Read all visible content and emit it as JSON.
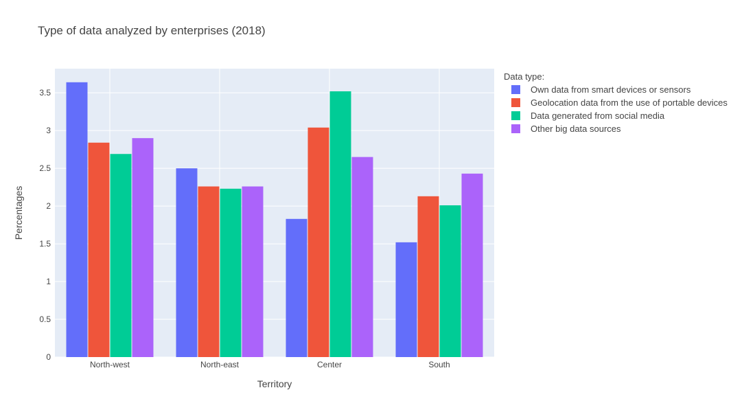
{
  "chart_data": {
    "type": "bar",
    "title": "Type of data analyzed by enterprises (2018)",
    "xlabel": "Territory",
    "ylabel": "Percentages",
    "categories": [
      "North-west",
      "North-east",
      "Center",
      "South"
    ],
    "ylim": [
      0,
      3.82
    ],
    "yticks": [
      0,
      0.5,
      1,
      1.5,
      2,
      2.5,
      3,
      3.5
    ],
    "ytick_labels": [
      "0",
      "0.5",
      "1",
      "1.5",
      "2",
      "2.5",
      "3",
      "3.5"
    ],
    "grid": true,
    "legend_title": "Data type:",
    "legend_position": "top-right, outside plot",
    "series": [
      {
        "name": "Own data from smart devices or sensors",
        "color": "#636efa",
        "values": [
          3.64,
          2.5,
          1.83,
          1.52
        ]
      },
      {
        "name": "Geolocation data from the use of portable devices",
        "color": "#ef553b",
        "values": [
          2.84,
          2.26,
          3.04,
          2.13
        ]
      },
      {
        "name": "Data generated from social media",
        "color": "#00cc96",
        "values": [
          2.69,
          2.23,
          3.52,
          2.01
        ]
      },
      {
        "name": "Other big data sources",
        "color": "#ab63fa",
        "values": [
          2.9,
          2.26,
          2.65,
          2.43
        ]
      }
    ],
    "plot_background": "#e5ecf6"
  }
}
